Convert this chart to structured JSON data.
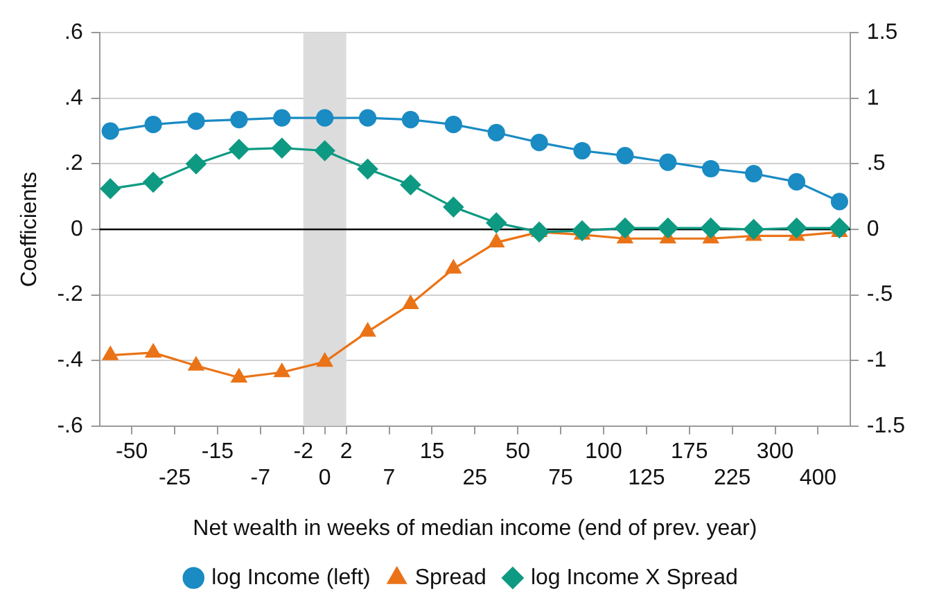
{
  "chart_data": {
    "type": "line",
    "xlabel": "Net wealth in weeks of median income (end of prev. year)",
    "ylabel": "Coefficients",
    "categories": [
      null,
      "-50",
      null,
      "-25",
      null,
      "-15",
      null,
      "-7",
      null,
      "-2",
      "0",
      "2",
      null,
      "7",
      null,
      "15",
      null,
      "25",
      null,
      "50",
      null,
      "75",
      null,
      "100",
      null,
      "125",
      null,
      "175",
      null,
      "225",
      null,
      "300",
      null,
      "400",
      null
    ],
    "ylim": [
      -0.6,
      0.6
    ],
    "yticks": [
      {
        "value": -0.6,
        "label": "-.6"
      },
      {
        "value": -0.4,
        "label": "-.4"
      },
      {
        "value": -0.2,
        "label": "-.2"
      },
      0,
      {
        "value": 0.2,
        "label": ".2"
      },
      {
        "value": 0.4,
        "label": ".4"
      },
      {
        "value": 0.6,
        "label": ".6"
      }
    ],
    "y2lim": [
      -1.5,
      1.5
    ],
    "y2ticks": [
      {
        "value": -1.5,
        "label": "-1.5"
      },
      -1,
      {
        "value": -0.5,
        "label": "-.5"
      },
      0,
      {
        "value": 0.5,
        "label": ".5"
      },
      1,
      {
        "value": 1.5,
        "label": "1.5"
      }
    ],
    "series": [
      {
        "name": "log Income (left)",
        "color": "#1a8bc3",
        "marker": "circle",
        "values": [
          0.3,
          null,
          0.32,
          null,
          0.33,
          null,
          0.335,
          null,
          0.34,
          null,
          0.34,
          null,
          0.34,
          null,
          0.335,
          null,
          0.32,
          null,
          0.295,
          null,
          0.265,
          null,
          0.24,
          null,
          0.225,
          null,
          0.205,
          null,
          0.185,
          null,
          0.17,
          null,
          0.145,
          null,
          0.085
        ]
      },
      {
        "name": "Spread",
        "color": "#ea7317",
        "marker": "triangle",
        "axis": "y2",
        "values": [
          -0.96,
          null,
          -0.94,
          null,
          -1.04,
          null,
          -1.13,
          null,
          -1.09,
          null,
          -1.01,
          null,
          -0.78,
          null,
          -0.57,
          null,
          -0.3,
          null,
          -0.1,
          null,
          -0.02,
          null,
          -0.04,
          null,
          -0.07,
          null,
          -0.07,
          null,
          -0.07,
          null,
          -0.05,
          null,
          -0.05,
          null,
          -0.02
        ]
      },
      {
        "name": "log Income X Spread",
        "color": "#0e9a82",
        "marker": "diamond",
        "axis": "y2",
        "values": [
          0.31,
          null,
          0.36,
          null,
          0.5,
          null,
          0.61,
          null,
          0.62,
          null,
          0.6,
          null,
          0.46,
          null,
          0.34,
          null,
          0.17,
          null,
          0.05,
          null,
          -0.02,
          null,
          -0.01,
          null,
          0.01,
          null,
          0.01,
          null,
          0.01,
          null,
          0,
          null,
          0.01,
          null,
          0.01
        ]
      }
    ],
    "ref_lines": [
      {
        "axis": "y",
        "value": 0,
        "color": "#000000"
      }
    ],
    "bands": [
      {
        "axis": "x",
        "from": "-2",
        "to": "2",
        "color": "#dcdcdc"
      }
    ],
    "grid": "y",
    "legend": "bottom",
    "line_style": "solid"
  }
}
